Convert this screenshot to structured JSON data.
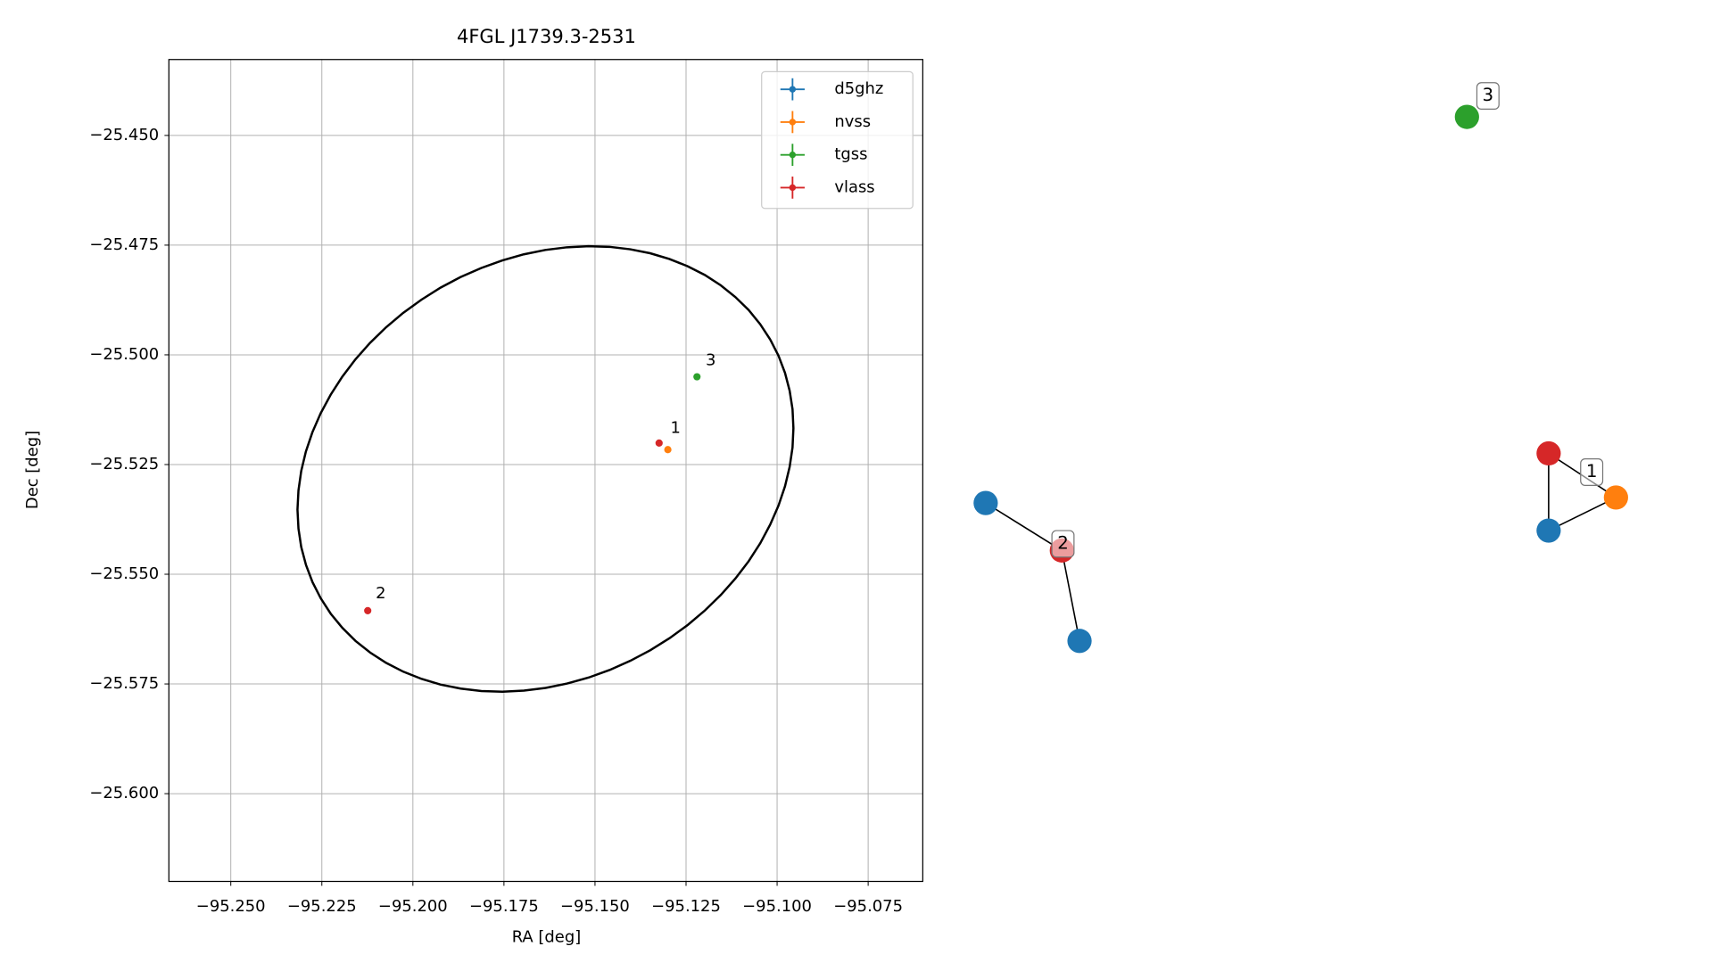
{
  "chart_data": [
    {
      "type": "scatter",
      "title": "4FGL J1739.3-2531",
      "x_label": "RA [deg]",
      "y_label": "Dec [deg]",
      "xlim": [
        -95.267,
        -95.06
      ],
      "ylim": [
        -25.62,
        -25.4327
      ],
      "xticks": [
        {
          "value": -95.25,
          "label": "−95.250"
        },
        {
          "value": -95.225,
          "label": "−95.225"
        },
        {
          "value": -95.2,
          "label": "−95.200"
        },
        {
          "value": -95.175,
          "label": "−95.175"
        },
        {
          "value": -95.15,
          "label": "−95.150"
        },
        {
          "value": -95.125,
          "label": "−95.125"
        },
        {
          "value": -95.1,
          "label": "−95.100"
        },
        {
          "value": -95.075,
          "label": "−95.075"
        }
      ],
      "yticks": [
        {
          "value": -25.45,
          "label": "−25.450"
        },
        {
          "value": -25.475,
          "label": "−25.475"
        },
        {
          "value": -25.5,
          "label": "−25.500"
        },
        {
          "value": -25.525,
          "label": "−25.525"
        },
        {
          "value": -25.55,
          "label": "−25.550"
        },
        {
          "value": -25.575,
          "label": "−25.575"
        },
        {
          "value": -25.6,
          "label": "−25.600"
        }
      ],
      "grid": true,
      "legend": "upper right",
      "series": [
        {
          "name": "d5ghz",
          "color": "#1f77b4",
          "x": [],
          "values": []
        },
        {
          "name": "nvss",
          "color": "#ff7f0e",
          "x": [
            -95.13
          ],
          "values": [
            -25.5216
          ]
        },
        {
          "name": "tgss",
          "color": "#2ca02c",
          "x": [
            -95.122
          ],
          "values": [
            -25.505
          ]
        },
        {
          "name": "vlass",
          "color": "#d62728",
          "x": [
            -95.1324,
            -95.2124
          ],
          "values": [
            -25.5201,
            -25.5583
          ]
        }
      ],
      "ellipse": {
        "color": "#000000",
        "center": [
          -95.1636,
          -25.526
        ],
        "u": [
          0.0617,
          0.0295
        ],
        "v": [
          -0.0288,
          0.0413
        ]
      },
      "annotations": [
        {
          "text": "1",
          "x": -95.1279,
          "y": -25.5168
        },
        {
          "text": "2",
          "x": -95.2088,
          "y": -25.5545
        },
        {
          "text": "3",
          "x": -95.1182,
          "y": -25.5013
        }
      ]
    },
    {
      "type": "network",
      "nodes": [
        {
          "color": "#1f77b4"
        },
        {
          "color": "#d62728"
        },
        {
          "color": "#1f77b4"
        },
        {
          "color": "#2ca02c"
        },
        {
          "color": "#d62728"
        },
        {
          "color": "#ff7f0e"
        },
        {
          "color": "#1f77b4"
        }
      ],
      "edges": [
        [
          0,
          1
        ],
        [
          1,
          2
        ],
        [
          4,
          6
        ],
        [
          4,
          5
        ],
        [
          5,
          6
        ]
      ],
      "group_labels": [
        "1",
        "2",
        "3"
      ]
    }
  ]
}
